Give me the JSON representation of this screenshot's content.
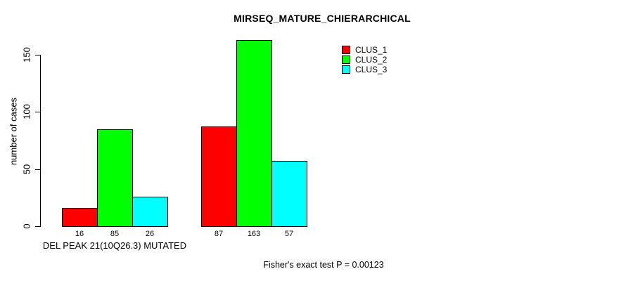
{
  "page": {
    "background": "#ffffff"
  },
  "chart_data": {
    "type": "bar",
    "title": "MIRSEQ_MATURE_CHIERARCHICAL",
    "ylabel": "number of cases",
    "xlabel": "DEL PEAK 21(10Q26.3) MUTATED",
    "yticks": [
      0,
      50,
      100,
      150
    ],
    "ylim": [
      0,
      163
    ],
    "grid": false,
    "legend_position": "top-right",
    "categories": [
      "DEL PEAK 21(10Q26.3) MUTATED",
      ""
    ],
    "series": [
      {
        "name": "CLUS_1",
        "color": "#ff0000",
        "values": [
          16,
          87
        ]
      },
      {
        "name": "CLUS_2",
        "color": "#00ff00",
        "values": [
          85,
          163
        ]
      },
      {
        "name": "CLUS_3",
        "color": "#00ffff",
        "values": [
          26,
          57
        ]
      }
    ],
    "bar_value_labels": [
      [
        16,
        85,
        26
      ],
      [
        87,
        163,
        57
      ]
    ],
    "annotation": "Fisher's exact test P = 0.00123"
  }
}
